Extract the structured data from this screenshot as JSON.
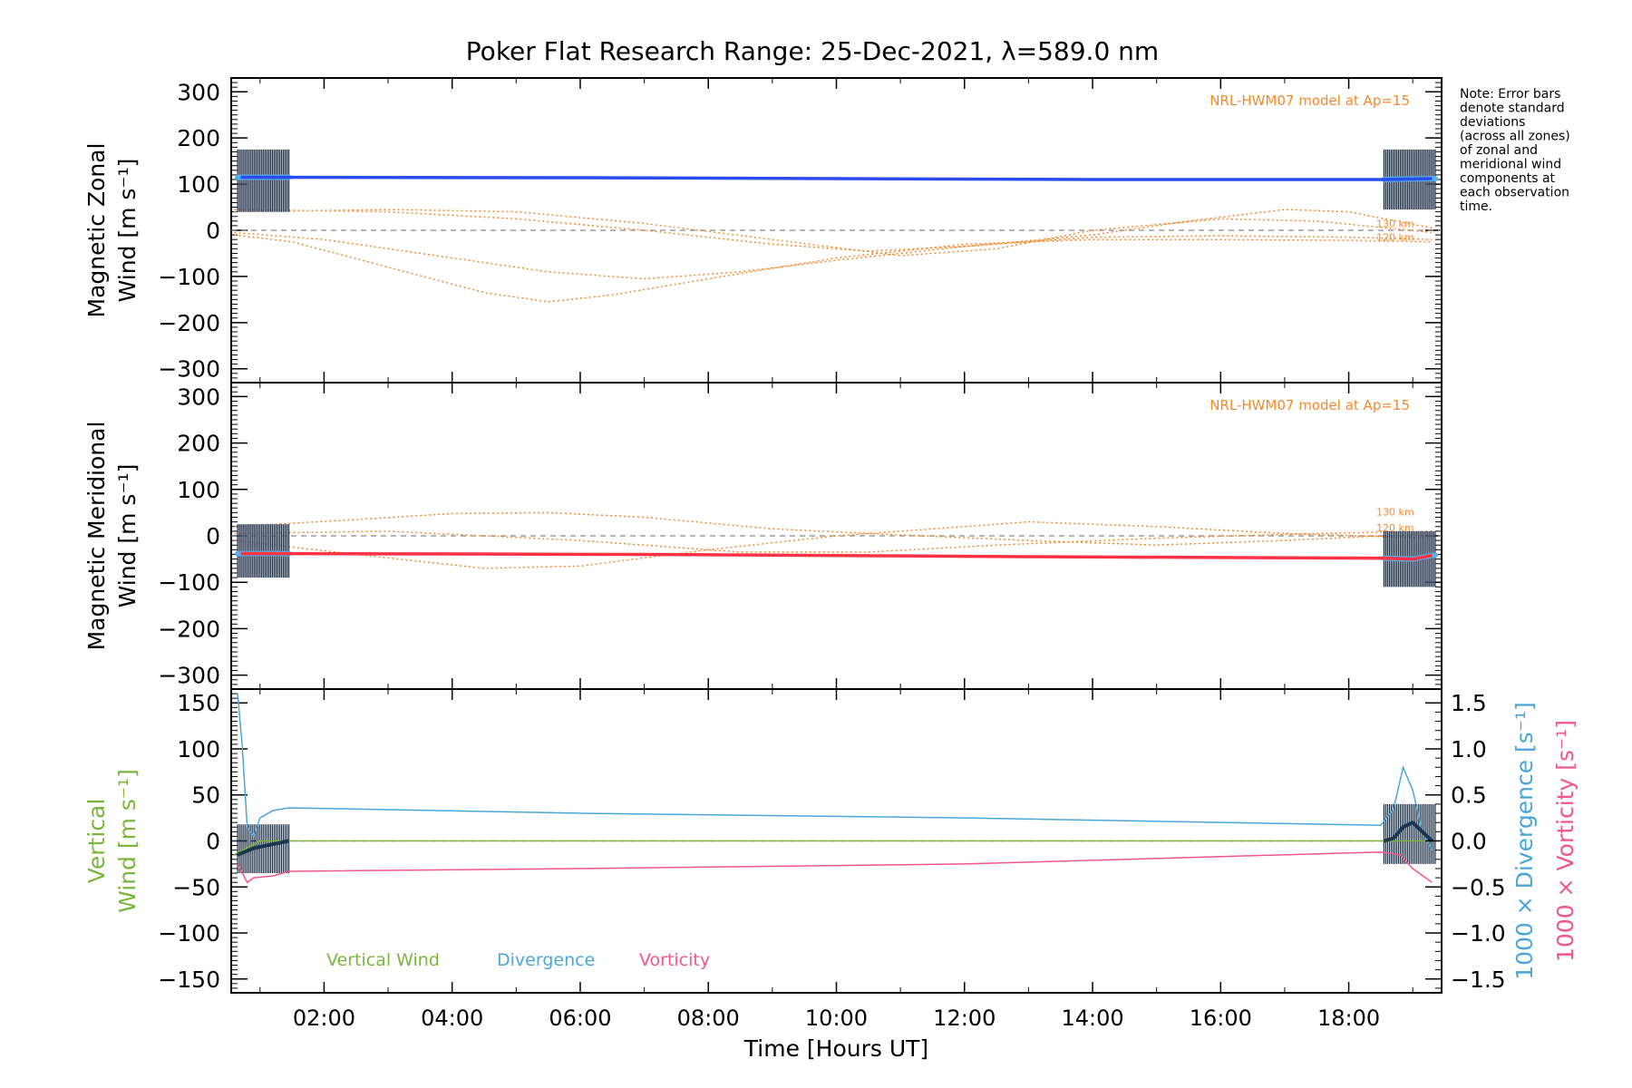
{
  "title": "Poker Flat Research Range: 25-Dec-2021, λ=589.0 nm",
  "note_lines": [
    "Note: Error bars",
    "denote standard",
    "deviations",
    "(across all zones)",
    "of zonal and",
    "meridional wind",
    "components at",
    "each observation",
    "time."
  ],
  "x_axis": {
    "label": "Time [Hours UT]",
    "range_hours": [
      0.55,
      19.45
    ],
    "ticks": [
      {
        "hour": 2,
        "label": "02:00"
      },
      {
        "hour": 4,
        "label": "04:00"
      },
      {
        "hour": 6,
        "label": "06:00"
      },
      {
        "hour": 8,
        "label": "08:00"
      },
      {
        "hour": 10,
        "label": "10:00"
      },
      {
        "hour": 12,
        "label": "12:00"
      },
      {
        "hour": 14,
        "label": "14:00"
      },
      {
        "hour": 16,
        "label": "16:00"
      },
      {
        "hour": 18,
        "label": "18:00"
      }
    ]
  },
  "colors": {
    "zonal": "#2a4cf0",
    "zonal_light": "#55b0e8",
    "meridional": "#ff3344",
    "model": "#f5892a",
    "spread": "#b8b4e6",
    "errorbar": "#1c2a3a",
    "vertical": "#7ab63c",
    "divergence": "#4aa6d8",
    "vorticity": "#f2558a",
    "dark": "#1c3650",
    "zero": "#888888"
  },
  "chart_data": [
    {
      "type": "line",
      "panel": "zonal",
      "ylabel_lines": [
        "Magnetic Zonal",
        "Wind [m s⁻¹]"
      ],
      "ylim": [
        -330,
        330
      ],
      "yticks": [
        -300,
        -200,
        -100,
        0,
        100,
        200,
        300
      ],
      "model_label": "NRL-HWM07 model at Ap=15",
      "model_alt_labels": [
        {
          "text": "130 km",
          "value": 15
        },
        {
          "text": "120 km",
          "value": -15
        }
      ],
      "series": [
        {
          "role": "wind",
          "points": [
            [
              0.7,
              115
            ],
            [
              6,
              114
            ],
            [
              10,
              112
            ],
            [
              14,
              110
            ],
            [
              18.5,
              110
            ],
            [
              19.3,
              112
            ]
          ]
        },
        {
          "role": "model",
          "points": [
            [
              0.6,
              -10
            ],
            [
              1.5,
              -25
            ],
            [
              3,
              -80
            ],
            [
              4.5,
              -135
            ],
            [
              5.5,
              -155
            ],
            [
              6.5,
              -140
            ],
            [
              8,
              -105
            ],
            [
              10,
              -60
            ],
            [
              12,
              -30
            ],
            [
              14,
              -20
            ],
            [
              16,
              -20
            ],
            [
              18,
              -22
            ],
            [
              19.3,
              -25
            ]
          ]
        },
        {
          "role": "model",
          "points": [
            [
              0.6,
              -5
            ],
            [
              2,
              -20
            ],
            [
              4,
              -60
            ],
            [
              5.5,
              -90
            ],
            [
              7,
              -105
            ],
            [
              8.5,
              -90
            ],
            [
              10,
              -65
            ],
            [
              12,
              -35
            ],
            [
              14,
              -15
            ],
            [
              16,
              -12
            ],
            [
              18,
              -15
            ],
            [
              19.3,
              -20
            ]
          ]
        },
        {
          "role": "model",
          "points": [
            [
              0.6,
              45
            ],
            [
              3,
              40
            ],
            [
              5,
              25
            ],
            [
              7,
              0
            ],
            [
              9,
              -30
            ],
            [
              10.5,
              -45
            ],
            [
              12,
              -35
            ],
            [
              14,
              -10
            ],
            [
              15.5,
              20
            ],
            [
              17,
              45
            ],
            [
              18,
              40
            ],
            [
              19.3,
              5
            ]
          ]
        },
        {
          "role": "model",
          "points": [
            [
              0.6,
              40
            ],
            [
              3,
              45
            ],
            [
              5,
              40
            ],
            [
              7,
              15
            ],
            [
              9,
              -20
            ],
            [
              11,
              -55
            ],
            [
              12.5,
              -40
            ],
            [
              14,
              0
            ],
            [
              16,
              25
            ],
            [
              17.5,
              20
            ],
            [
              19.3,
              -5
            ]
          ]
        }
      ],
      "error_windows": [
        {
          "from": 0.65,
          "to": 1.45,
          "upper": 175,
          "lower": 40
        },
        {
          "from": 18.55,
          "to": 19.35,
          "upper": 175,
          "lower": 45
        }
      ]
    },
    {
      "type": "line",
      "panel": "meridional",
      "ylabel_lines": [
        "Magnetic Meridional",
        "Wind [m s⁻¹]"
      ],
      "ylim": [
        -330,
        330
      ],
      "yticks": [
        -300,
        -200,
        -100,
        0,
        100,
        200,
        300
      ],
      "model_label": "NRL-HWM07 model at Ap=15",
      "model_alt_labels": [
        {
          "text": "130 km",
          "value": 52
        },
        {
          "text": "120 km",
          "value": 18
        }
      ],
      "series": [
        {
          "role": "wind",
          "points": [
            [
              0.7,
              -38
            ],
            [
              7,
              -40
            ],
            [
              13,
              -45
            ],
            [
              18.5,
              -48
            ],
            [
              19.0,
              -50
            ],
            [
              19.3,
              -42
            ]
          ]
        },
        {
          "role": "model",
          "points": [
            [
              0.6,
              20
            ],
            [
              2.5,
              35
            ],
            [
              4,
              48
            ],
            [
              5.5,
              50
            ],
            [
              7,
              40
            ],
            [
              9,
              15
            ],
            [
              11,
              2
            ],
            [
              13,
              -10
            ],
            [
              15,
              -20
            ],
            [
              17,
              -10
            ],
            [
              19.3,
              5
            ]
          ]
        },
        {
          "role": "model",
          "points": [
            [
              0.6,
              -10
            ],
            [
              2.5,
              -40
            ],
            [
              4.5,
              -70
            ],
            [
              6,
              -65
            ],
            [
              8,
              -30
            ],
            [
              10,
              0
            ],
            [
              12,
              20
            ],
            [
              13,
              30
            ],
            [
              15,
              20
            ],
            [
              17,
              5
            ],
            [
              19.3,
              -5
            ]
          ]
        },
        {
          "role": "model",
          "points": [
            [
              0.6,
              5
            ],
            [
              3,
              10
            ],
            [
              6,
              -10
            ],
            [
              8.5,
              -35
            ],
            [
              10.5,
              -35
            ],
            [
              12.5,
              -20
            ],
            [
              15,
              -5
            ],
            [
              17.5,
              5
            ],
            [
              19.3,
              10
            ]
          ]
        }
      ],
      "error_windows": [
        {
          "from": 0.65,
          "to": 1.45,
          "upper": 25,
          "lower": -90
        },
        {
          "from": 18.55,
          "to": 19.35,
          "upper": 10,
          "lower": -110
        }
      ]
    },
    {
      "type": "line",
      "panel": "vertical",
      "ylabel_lines": [
        "Vertical",
        "Wind [m s⁻¹]"
      ],
      "ylim": [
        -165,
        165
      ],
      "yticks": [
        -150,
        -100,
        -50,
        0,
        50,
        100,
        150
      ],
      "y2": {
        "label_div": "1000 × Divergence [s⁻¹]",
        "label_vort": "1000 × Vorticity [s⁻¹]",
        "ylim": [
          -1.65,
          1.65
        ],
        "ticks": [
          {
            "value": -1.5,
            "label": "−1.5"
          },
          {
            "value": -1.0,
            "label": "−1.0"
          },
          {
            "value": -0.5,
            "label": "−0.5"
          },
          {
            "value": 0.0,
            "label": "0.0"
          },
          {
            "value": 0.5,
            "label": "0.5"
          },
          {
            "value": 1.0,
            "label": "1.0"
          },
          {
            "value": 1.5,
            "label": "1.5"
          }
        ]
      },
      "legend": [
        "Vertical Wind",
        "Divergence",
        "Vorticity"
      ],
      "series": [
        {
          "name": "Vertical Wind",
          "axis": "left",
          "points": [
            [
              0.6,
              -15
            ],
            [
              1.0,
              0
            ],
            [
              1.5,
              0
            ],
            [
              10,
              0
            ],
            [
              18.5,
              0
            ],
            [
              19.3,
              0
            ]
          ]
        },
        {
          "name": "Divergence",
          "axis": "right",
          "points": [
            [
              0.65,
              1.6
            ],
            [
              0.72,
              1.05
            ],
            [
              0.8,
              0.15
            ],
            [
              0.9,
              0.05
            ],
            [
              1.0,
              0.25
            ],
            [
              1.2,
              0.33
            ],
            [
              1.45,
              0.36
            ],
            [
              6,
              0.3
            ],
            [
              12,
              0.25
            ],
            [
              18.5,
              0.17
            ],
            [
              18.7,
              0.35
            ],
            [
              18.85,
              0.8
            ],
            [
              19.0,
              0.55
            ],
            [
              19.15,
              0.1
            ],
            [
              19.3,
              -0.1
            ]
          ]
        },
        {
          "name": "Vorticity",
          "axis": "right",
          "points": [
            [
              0.65,
              -0.25
            ],
            [
              0.8,
              -0.45
            ],
            [
              0.9,
              -0.4
            ],
            [
              1.2,
              -0.38
            ],
            [
              1.45,
              -0.33
            ],
            [
              6,
              -0.3
            ],
            [
              12,
              -0.25
            ],
            [
              18.5,
              -0.12
            ],
            [
              18.8,
              -0.15
            ],
            [
              19.0,
              -0.3
            ],
            [
              19.3,
              -0.45
            ]
          ]
        },
        {
          "role": "measured",
          "axis": "left",
          "points": [
            [
              0.65,
              -15
            ],
            [
              0.9,
              -8
            ],
            [
              1.1,
              -5
            ],
            [
              1.45,
              0
            ],
            [
              18.55,
              0
            ],
            [
              18.7,
              3
            ],
            [
              18.85,
              15
            ],
            [
              19.0,
              20
            ],
            [
              19.15,
              10
            ],
            [
              19.3,
              0
            ]
          ]
        }
      ],
      "error_windows": [
        {
          "from": 0.65,
          "to": 1.45,
          "upper": 18,
          "lower": -35
        },
        {
          "from": 18.55,
          "to": 19.35,
          "upper": 40,
          "lower": -25
        }
      ]
    }
  ]
}
